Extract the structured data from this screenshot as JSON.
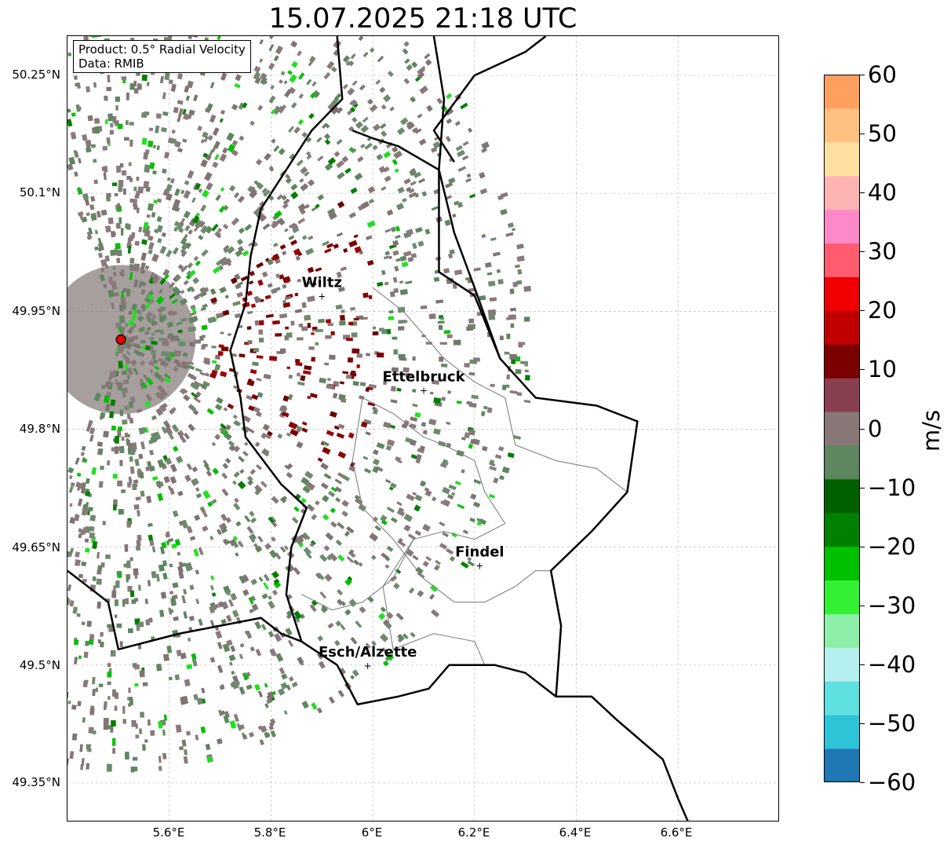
{
  "title": "15.07.2025 21:18 UTC",
  "info": {
    "product": "Product: 0.5° Radial Velocity",
    "source": "Data: RMIB"
  },
  "axes": {
    "lat_labels": [
      "50.25°N",
      "50.1°N",
      "49.95°N",
      "49.8°N",
      "49.65°N",
      "49.5°N",
      "49.35°N"
    ],
    "lon_labels": [
      "5.6°E",
      "5.8°E",
      "6°E",
      "6.2°E",
      "6.4°E",
      "6.6°E"
    ]
  },
  "places": [
    {
      "name": "Wiltz",
      "lon": 5.9,
      "lat": 49.97
    },
    {
      "name": "Ettelbruck",
      "lon": 6.1,
      "lat": 49.85
    },
    {
      "name": "Findel",
      "lon": 6.21,
      "lat": 49.627
    },
    {
      "name": "Esch/Alzette",
      "lon": 5.99,
      "lat": 49.5
    }
  ],
  "radar_site": {
    "lon": 5.505,
    "lat": 49.914,
    "color": "#e00000"
  },
  "colorbar": {
    "unit": "m/s",
    "labels": [
      "60",
      "50",
      "40",
      "30",
      "20",
      "10",
      "0",
      "−10",
      "−20",
      "−30",
      "−40",
      "−50",
      "−60"
    ],
    "range": [
      -60,
      60
    ],
    "colors": [
      "#1f77b4",
      "#2ec4d8",
      "#5fe0e0",
      "#b5eff0",
      "#8ef0a8",
      "#34f034",
      "#00c000",
      "#008000",
      "#006000",
      "#5e8660",
      "#887878",
      "#884050",
      "#7a0000",
      "#c00000",
      "#f00000",
      "#ff5c70",
      "#ff88c8",
      "#ffb4b4",
      "#ffe0a0",
      "#ffc080",
      "#ffa060"
    ]
  },
  "map_extent": {
    "lon_min": 5.4,
    "lon_max": 6.8,
    "lat_min": 49.3,
    "lat_max": 50.3
  }
}
